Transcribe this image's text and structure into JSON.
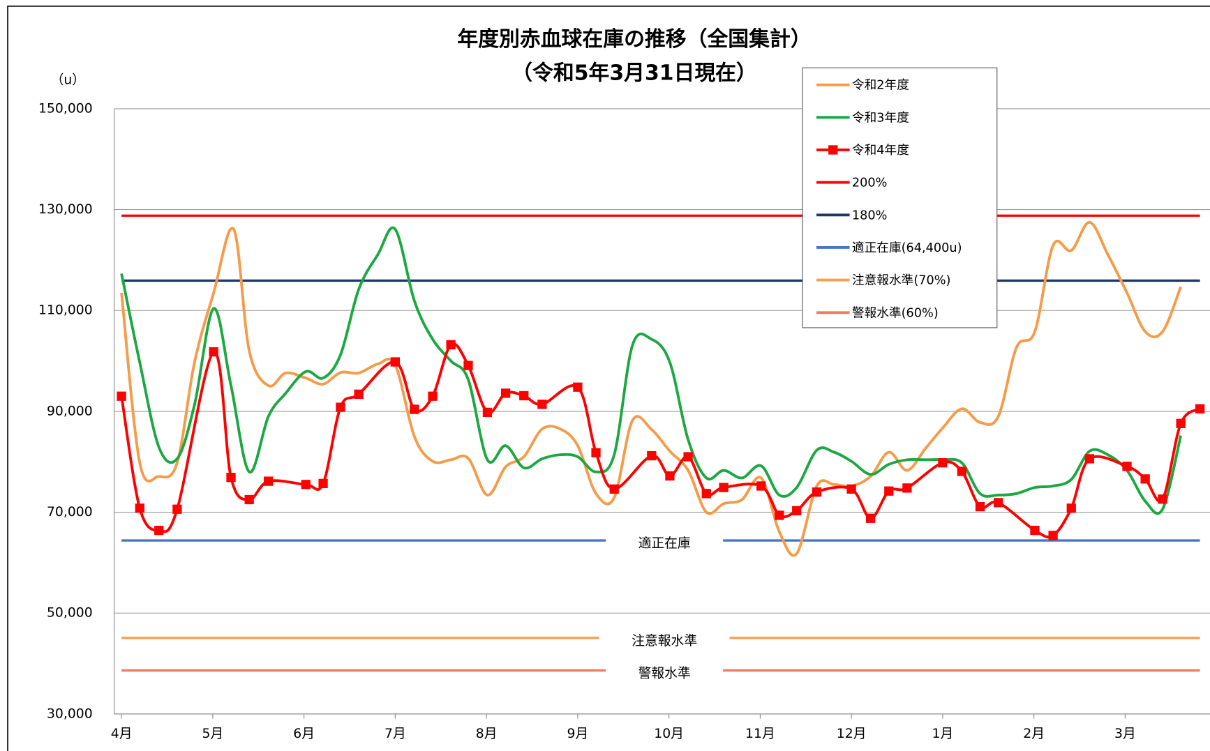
{
  "chart_data": {
    "type": "line",
    "title": "年度別赤血球在庫の推移（全国集計）",
    "subtitle": "（令和5年3月31日現在）",
    "y_unit": "（u）",
    "xlim": [
      -0.08,
      11.93
    ],
    "xticks": [
      {
        "value": 0,
        "label": "4月"
      },
      {
        "value": 1,
        "label": "5月"
      },
      {
        "value": 2,
        "label": "6月"
      },
      {
        "value": 3,
        "label": "7月"
      },
      {
        "value": 4,
        "label": "8月"
      },
      {
        "value": 5,
        "label": "9月"
      },
      {
        "value": 6,
        "label": "10月"
      },
      {
        "value": 7,
        "label": "11月"
      },
      {
        "value": 8,
        "label": "12月"
      },
      {
        "value": 9,
        "label": "1月"
      },
      {
        "value": 10,
        "label": "2月"
      },
      {
        "value": 11,
        "label": "3月"
      }
    ],
    "ylim": [
      30000,
      150000
    ],
    "yticks": [
      {
        "value": 30000,
        "label": "30,000"
      },
      {
        "value": 50000,
        "label": "50,000"
      },
      {
        "value": 70000,
        "label": "70,000"
      },
      {
        "value": 90000,
        "label": "90,000"
      },
      {
        "value": 110000,
        "label": "110,000"
      },
      {
        "value": 130000,
        "label": "130,000"
      },
      {
        "value": 150000,
        "label": "150,000"
      }
    ],
    "grid": true,
    "smooth": true,
    "series": [
      {
        "name": "令和2年度",
        "color": "#f59b4a",
        "x": [
          0,
          0.2,
          0.41,
          0.61,
          0.8,
          1.01,
          1.23,
          1.4,
          1.61,
          1.8,
          2.02,
          2.21,
          2.4,
          2.6,
          2.81,
          3.0,
          3.21,
          3.41,
          3.61,
          3.8,
          4.01,
          4.21,
          4.41,
          4.61,
          4.81,
          5.0,
          5.2,
          5.4,
          5.6,
          5.81,
          6.01,
          6.21,
          6.41,
          6.6,
          6.8,
          7.01,
          7.21,
          7.4,
          7.62,
          7.81,
          8.0,
          8.21,
          8.41,
          8.61,
          8.81,
          9.0,
          9.21,
          9.41,
          9.61,
          9.81,
          10.01,
          10.21,
          10.41,
          10.61,
          10.81,
          11.02,
          11.22,
          11.41,
          11.61
        ],
        "values": [
          113500,
          79800,
          77100,
          79800,
          99700,
          113500,
          126100,
          102000,
          95100,
          97600,
          96600,
          95400,
          97700,
          97600,
          99400,
          99200,
          85000,
          80100,
          80400,
          80700,
          73400,
          79000,
          81000,
          86500,
          86500,
          83200,
          73700,
          72900,
          88200,
          86400,
          82100,
          78300,
          70000,
          71700,
          72500,
          76800,
          66100,
          61800,
          75200,
          75500,
          75200,
          77100,
          81900,
          78300,
          82600,
          86700,
          90500,
          87800,
          89000,
          102700,
          105800,
          122900,
          121900,
          127500,
          121100,
          113500,
          105800,
          105800,
          114700
        ]
      },
      {
        "name": "令和3年度",
        "color": "#1ca841",
        "x": [
          0,
          0.2,
          0.41,
          0.61,
          0.8,
          1.01,
          1.2,
          1.4,
          1.61,
          1.8,
          2.02,
          2.21,
          2.4,
          2.6,
          2.81,
          3.0,
          3.21,
          3.41,
          3.61,
          3.8,
          4.01,
          4.21,
          4.41,
          4.61,
          4.81,
          5.0,
          5.2,
          5.4,
          5.6,
          5.81,
          6.01,
          6.21,
          6.41,
          6.6,
          6.8,
          7.01,
          7.21,
          7.4,
          7.62,
          7.81,
          8.0,
          8.21,
          8.41,
          8.61,
          8.81,
          9.0,
          9.21,
          9.41,
          9.61,
          9.81,
          10.01,
          10.21,
          10.41,
          10.61,
          10.81,
          11.02,
          11.22,
          11.41,
          11.61
        ],
        "values": [
          117300,
          99700,
          82900,
          80600,
          91300,
          110400,
          95100,
          78000,
          89000,
          93600,
          97900,
          96600,
          101200,
          114200,
          121100,
          126100,
          111900,
          104300,
          100000,
          96300,
          80400,
          83200,
          78800,
          80600,
          81400,
          81000,
          78000,
          81400,
          103100,
          104300,
          99700,
          84400,
          76800,
          78300,
          76800,
          79200,
          73400,
          74900,
          82300,
          81900,
          80100,
          77500,
          79500,
          80400,
          80400,
          80400,
          79800,
          73700,
          73400,
          73700,
          74900,
          75200,
          76500,
          82100,
          81400,
          78300,
          72200,
          70600,
          85200
        ]
      },
      {
        "name": "令和4年度",
        "color": "#ff0000",
        "marker": "square",
        "x": [
          0,
          0.2,
          0.41,
          0.61,
          1.01,
          1.2,
          1.4,
          1.61,
          2.02,
          2.21,
          2.4,
          2.6,
          3.0,
          3.21,
          3.41,
          3.61,
          3.8,
          4.01,
          4.21,
          4.41,
          4.61,
          5.0,
          5.2,
          5.4,
          5.81,
          6.01,
          6.21,
          6.41,
          6.6,
          7.01,
          7.21,
          7.4,
          7.62,
          8.0,
          8.21,
          8.41,
          8.61,
          9.0,
          9.21,
          9.41,
          9.61,
          10.01,
          10.21,
          10.41,
          10.61,
          11.02,
          11.22,
          11.41,
          11.61,
          11.82
        ],
        "values": [
          93000,
          70800,
          66400,
          70600,
          101800,
          76900,
          72500,
          76150,
          75500,
          75700,
          90800,
          93400,
          99800,
          90400,
          93000,
          103200,
          99100,
          89800,
          93600,
          93100,
          91400,
          94800,
          81800,
          74600,
          81200,
          77200,
          81000,
          73700,
          74900,
          75200,
          69400,
          70300,
          74000,
          74600,
          68800,
          74200,
          74800,
          79800,
          78100,
          71100,
          71900,
          66400,
          65400,
          70800,
          80600,
          79100,
          76600,
          72600,
          87600,
          90500
        ]
      }
    ],
    "reference_lines": [
      {
        "name": "200%",
        "color": "#ff0000",
        "value": 128800
      },
      {
        "name": "180%",
        "color": "#1f3864",
        "value": 115920
      },
      {
        "name": "適正在庫(64,400u)",
        "color": "#4a76c0",
        "value": 64400,
        "label": "適正在庫"
      },
      {
        "name": "注意報水準(70%)",
        "color": "#f4a050",
        "value": 45080,
        "label": "注意報水準"
      },
      {
        "name": "警報水準(60%)",
        "color": "#ee7a5f",
        "value": 38640,
        "label": "警報水準"
      }
    ]
  }
}
